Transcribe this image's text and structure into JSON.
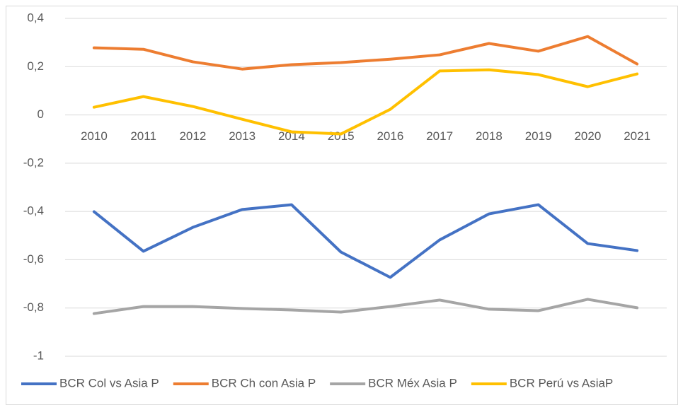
{
  "chart_data": {
    "type": "line",
    "categories": [
      "2010",
      "2011",
      "2012",
      "2013",
      "2014",
      "2015",
      "2016",
      "2017",
      "2018",
      "2019",
      "2020",
      "2021"
    ],
    "series": [
      {
        "name": "BCR Col vs Asia P",
        "color": "#4472c4",
        "values": [
          -0.401,
          -0.565,
          -0.466,
          -0.392,
          -0.372,
          -0.568,
          -0.673,
          -0.518,
          -0.41,
          -0.372,
          -0.533,
          -0.562
        ]
      },
      {
        "name": "BCR Ch con Asia P",
        "color": "#ed7d31",
        "values": [
          0.278,
          0.272,
          0.22,
          0.19,
          0.208,
          0.217,
          0.231,
          0.249,
          0.296,
          0.264,
          0.325,
          0.211
        ]
      },
      {
        "name": "BCR Méx Asia P",
        "color": "#a5a5a5",
        "values": [
          -0.823,
          -0.794,
          -0.794,
          -0.802,
          -0.808,
          -0.817,
          -0.794,
          -0.767,
          -0.805,
          -0.811,
          -0.764,
          -0.799
        ]
      },
      {
        "name": "BCR Perú vs AsiaP",
        "color": "#ffc000",
        "values": [
          0.032,
          0.076,
          0.035,
          -0.018,
          -0.07,
          -0.079,
          0.023,
          0.182,
          0.187,
          0.167,
          0.117,
          0.17
        ]
      }
    ],
    "ylim": [
      -1,
      0.4
    ],
    "yticks": [
      -1,
      {
        "value": -0.8,
        "label": "-0,8"
      },
      {
        "value": -0.6,
        "label": "-0,6"
      },
      {
        "value": -0.4,
        "label": "-0,4"
      },
      {
        "value": -0.2,
        "label": "-0,2"
      },
      0,
      {
        "value": 0.2,
        "label": "0,2"
      },
      {
        "value": 0.4,
        "label": "0,4"
      }
    ],
    "grid": true,
    "legend": "bottom"
  }
}
